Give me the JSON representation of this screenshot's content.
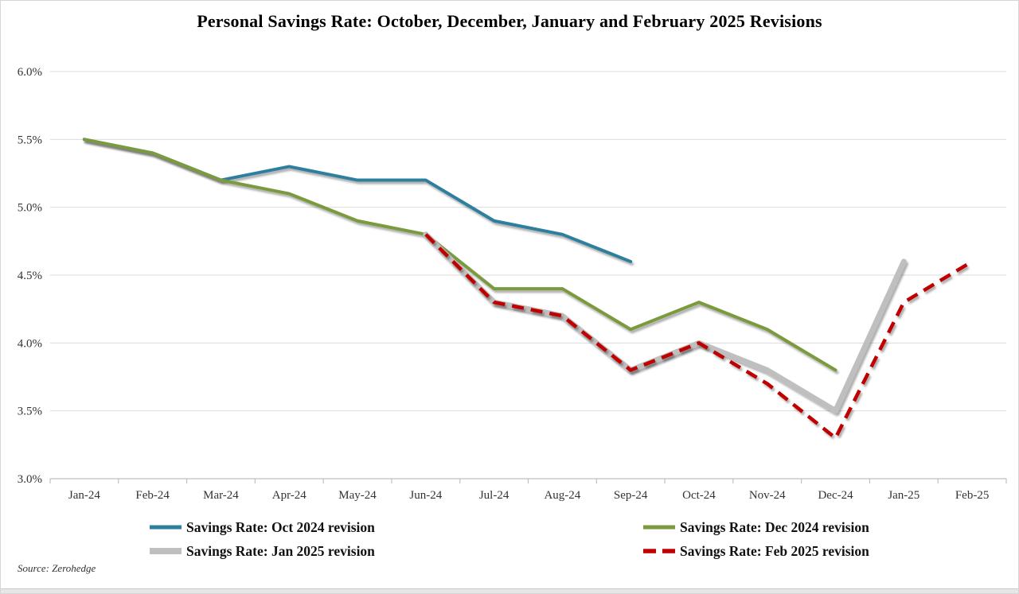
{
  "source_note": "Source: Zerohedge",
  "colors": {
    "teal": "#2E7F9D",
    "olive": "#7A9A3E",
    "gray": "#BFBFBF",
    "red": "#C00000",
    "gridline": "#DBDBDB",
    "axis": "#BFBFBF",
    "axis_text": "#333333",
    "title_text": "#000000"
  },
  "chart_data": {
    "type": "line",
    "title": "Personal Savings Rate: October, December, January and February 2025 Revisions",
    "xlabel": "",
    "ylabel": "",
    "categories": [
      "Jan-24",
      "Feb-24",
      "Mar-24",
      "Apr-24",
      "May-24",
      "Jun-24",
      "Jul-24",
      "Aug-24",
      "Sep-24",
      "Oct-24",
      "Nov-24",
      "Dec-24",
      "Jan-25",
      "Feb-25"
    ],
    "y_axis": {
      "min": 3.0,
      "max": 6.0,
      "step": 0.5,
      "unit": "%",
      "tick_labels_top_to_bottom": [
        "6.0%",
        "5.5%",
        "5.0%",
        "4.5%",
        "4.0%",
        "3.5%",
        "3.0%"
      ]
    },
    "grid": true,
    "legend_position": "bottom",
    "series": [
      {
        "name": "Savings Rate: Oct 2024 revision",
        "color": "#2E7F9D",
        "style": "solid",
        "width": 4,
        "values": [
          5.5,
          5.4,
          5.2,
          5.3,
          5.2,
          5.2,
          4.9,
          4.8,
          4.6,
          null,
          null,
          null,
          null,
          null
        ]
      },
      {
        "name": "Savings Rate: Dec 2024 revision",
        "color": "#7A9A3E",
        "style": "solid",
        "width": 4,
        "values": [
          5.5,
          5.4,
          5.2,
          5.1,
          4.9,
          4.8,
          4.4,
          4.4,
          4.1,
          4.3,
          4.1,
          3.8,
          null,
          null
        ]
      },
      {
        "name": "Savings Rate: Jan 2025 revision",
        "color": "#BFBFBF",
        "style": "solid",
        "width": 7,
        "values": [
          null,
          null,
          null,
          null,
          null,
          4.8,
          4.3,
          4.2,
          3.8,
          4.0,
          3.8,
          3.5,
          4.6,
          null
        ]
      },
      {
        "name": "Savings Rate: Feb 2025 revision",
        "color": "#C00000",
        "style": "dashed",
        "width": 4.5,
        "values": [
          null,
          null,
          null,
          null,
          null,
          4.8,
          4.3,
          4.2,
          3.8,
          4.0,
          3.7,
          3.3,
          4.3,
          4.6
        ]
      }
    ]
  }
}
